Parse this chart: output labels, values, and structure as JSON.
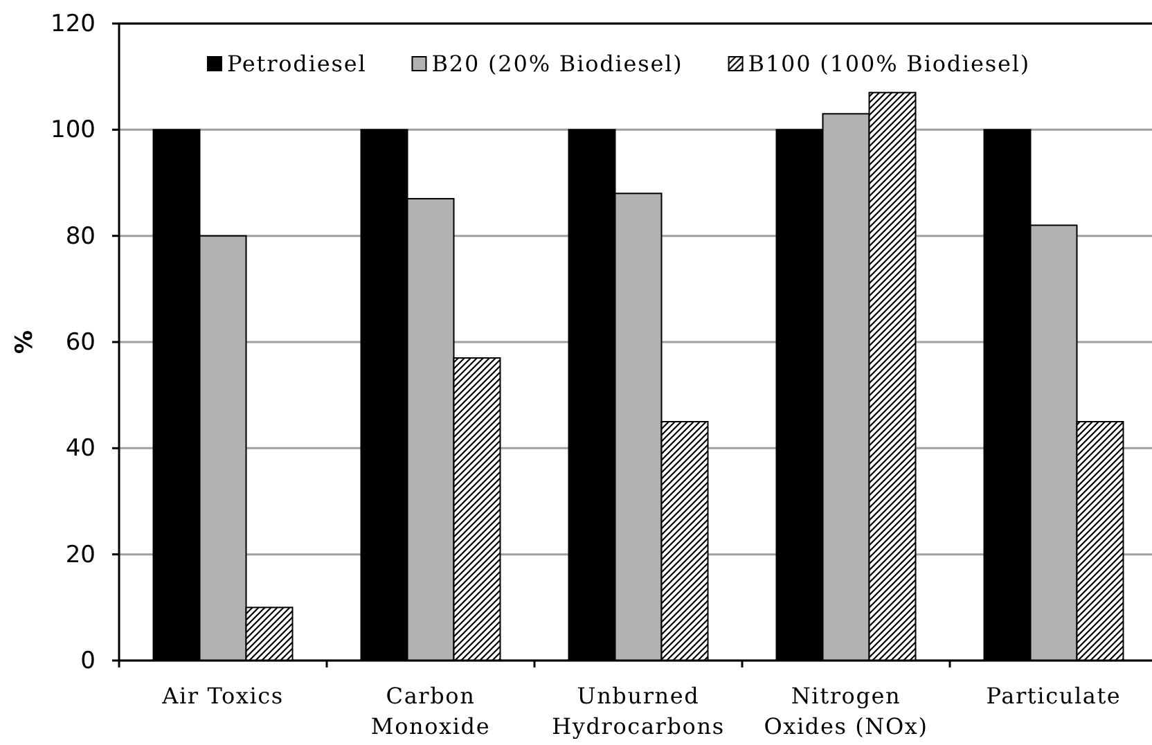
{
  "chart_data": {
    "type": "bar",
    "ylabel": "%",
    "categories": [
      "Air Toxics",
      "Carbon Monoxide",
      "Unburned Hydrocarbons",
      "Nitrogen Oxides (NOx)",
      "Particulate"
    ],
    "series": [
      {
        "name": "Petrodiesel",
        "color": "#000000",
        "values": [
          100,
          100,
          100,
          100,
          100
        ]
      },
      {
        "name": "B20 (20% Biodiesel)",
        "color": "#b2b2b2",
        "values": [
          80,
          87,
          88,
          103,
          82
        ]
      },
      {
        "name": "B100 (100% Biodiesel)",
        "color": "#000000",
        "values": [
          10,
          57,
          45,
          107,
          45
        ]
      }
    ],
    "ylim": [
      0,
      120
    ],
    "yticks": [
      0,
      20,
      40,
      60,
      80,
      100,
      120
    ],
    "grid": "y",
    "legend": "top"
  }
}
